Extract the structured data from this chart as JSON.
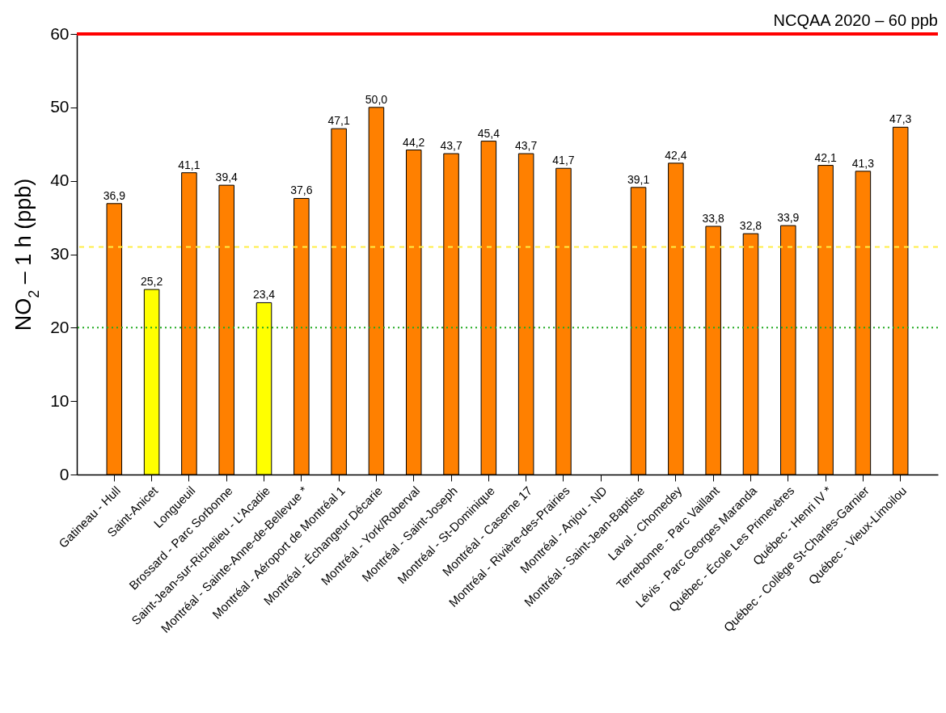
{
  "chart_data": {
    "type": "bar",
    "ylabel": "NO$_{2}$ – 1 h (ppb)",
    "categories": [
      "Gatineau - Hull",
      "Saint-Anicet",
      "Longueuil",
      "Brossard - Parc Sorbonne",
      "Saint-Jean-sur-Richelieu - L'Acadie",
      "Montréal - Sainte-Anne-de-Bellevue *",
      "Montréal - Aéroport de Montréal 1",
      "Montréal - Échangeur Décarie",
      "Montréal - York/Roberval",
      "Montréal - Saint-Joseph",
      "Montréal - St-Dominique",
      "Montréal - Caserne 17",
      "Montréal - Rivière-des-Prairies",
      "Montréal - Anjou - ND",
      "Montréal - Saint-Jean-Baptiste",
      "Laval - Chomedey",
      "Terrebonne - Parc Vaillant",
      "Lévis - Parc Georges Maranda",
      "Québec - École Les Primevères",
      "Québec - Henri IV *",
      "Québec - Collège St-Charles-Garnier",
      "Québec - Vieux-Limoilou"
    ],
    "values": [
      36.9,
      25.2,
      41.1,
      39.4,
      23.4,
      37.6,
      47.1,
      50.0,
      44.2,
      43.7,
      45.4,
      43.7,
      41.7,
      null,
      39.1,
      42.4,
      33.8,
      32.8,
      33.9,
      42.1,
      41.3,
      47.3
    ],
    "value_labels": [
      "36,9",
      "25,2",
      "41,1",
      "39,4",
      "23,4",
      "37,6",
      "47,1",
      "50,0",
      "44,2",
      "43,7",
      "45,4",
      "43,7",
      "41,7",
      null,
      "39,1",
      "42,4",
      "33,8",
      "32,8",
      "33,9",
      "42,1",
      "41,3",
      "47,3"
    ],
    "colors": [
      "#ff8000",
      "#ffff00",
      "#ff8000",
      "#ff8000",
      "#ffff00",
      "#ff8000",
      "#ff8000",
      "#ff8000",
      "#ff8000",
      "#ff8000",
      "#ff8000",
      "#ff8000",
      "#ff8000",
      "#ff8000",
      "#ff8000",
      "#ff8000",
      "#ff8000",
      "#ff8000",
      "#ff8000",
      "#ff8000",
      "#ff8000",
      "#ff8000"
    ],
    "ylim": [
      0,
      60
    ],
    "yticks": [
      0,
      10,
      20,
      30,
      40,
      50,
      60
    ],
    "grid": false,
    "ref_lines": [
      {
        "axis": "y",
        "value": 60,
        "label": "NCQAA 2020 – 60 ppb",
        "color": "#ff0000",
        "line_style": "solid"
      },
      {
        "axis": "y",
        "value": 31,
        "color": "#ffee44",
        "line_style": "dashed"
      },
      {
        "axis": "y",
        "value": 20,
        "color": "#22aa22",
        "line_style": "dotted"
      }
    ]
  }
}
